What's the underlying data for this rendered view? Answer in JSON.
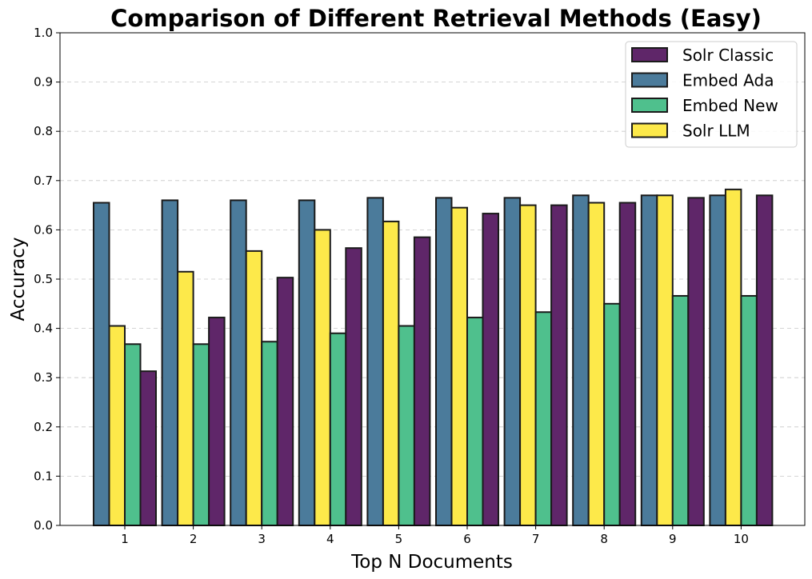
{
  "chart_data": {
    "type": "bar",
    "title": "Comparison of Different Retrieval Methods (Easy)",
    "xlabel": "Top N Documents",
    "ylabel": "Accuracy",
    "ylim": [
      0,
      1.0
    ],
    "yticks": [
      "0.0",
      "0.1",
      "0.2",
      "0.3",
      "0.4",
      "0.5",
      "0.6",
      "0.7",
      "0.8",
      "0.9",
      "1.0"
    ],
    "categories": [
      "1",
      "2",
      "3",
      "4",
      "5",
      "6",
      "7",
      "8",
      "9",
      "10"
    ],
    "grid": "y-dashed",
    "legend_position": "top-right",
    "series": [
      {
        "name": "Embed Ada",
        "color": "#4b7b9b",
        "values": [
          0.655,
          0.66,
          0.66,
          0.66,
          0.665,
          0.665,
          0.665,
          0.67,
          0.67,
          0.67
        ]
      },
      {
        "name": "Solr LLM",
        "color": "#fde94a",
        "values": [
          0.405,
          0.515,
          0.557,
          0.6,
          0.617,
          0.645,
          0.65,
          0.655,
          0.67,
          0.682
        ]
      },
      {
        "name": "Embed New",
        "color": "#4fc08d",
        "values": [
          0.368,
          0.368,
          0.373,
          0.39,
          0.405,
          0.422,
          0.433,
          0.45,
          0.466,
          0.466
        ]
      },
      {
        "name": "Solr Classic",
        "color": "#5f2669",
        "values": [
          0.313,
          0.422,
          0.503,
          0.563,
          0.585,
          0.633,
          0.65,
          0.655,
          0.665,
          0.67
        ]
      }
    ],
    "legend_order": [
      "Solr Classic",
      "Embed Ada",
      "Embed New",
      "Solr LLM"
    ]
  }
}
